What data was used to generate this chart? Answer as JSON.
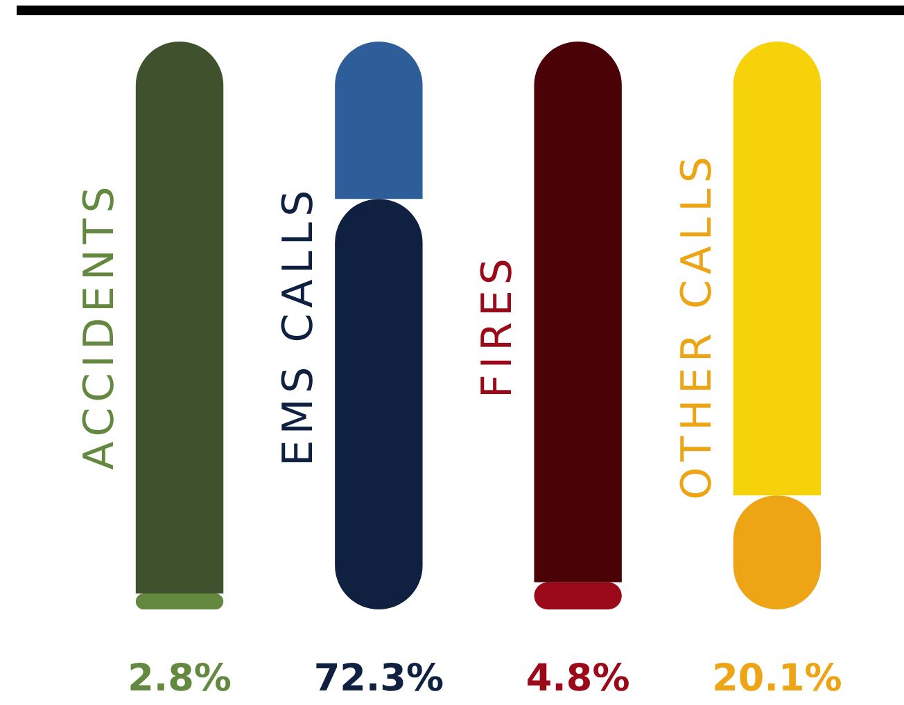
{
  "chart_data": {
    "type": "bar",
    "stacked": true,
    "categories": [
      "ACCIDENTS",
      "EMS CALLS",
      "FIRES",
      "OTHER CALLS"
    ],
    "series": [
      {
        "values": [
          2.8,
          72.3,
          4.8,
          20.1
        ],
        "colors": [
          "#658840",
          "#0f2040",
          "#9b0a18",
          "#eda516"
        ],
        "value_labels": [
          "2.8%",
          "72.3%",
          "4.8%",
          "20.1%"
        ]
      },
      {
        "values": [
          97.2,
          27.7,
          95.2,
          79.9
        ],
        "colors": [
          "#3f522d",
          "#2e5e99",
          "#4a0206",
          "#f5d20a"
        ]
      }
    ],
    "ylim": [
      0,
      100
    ]
  }
}
